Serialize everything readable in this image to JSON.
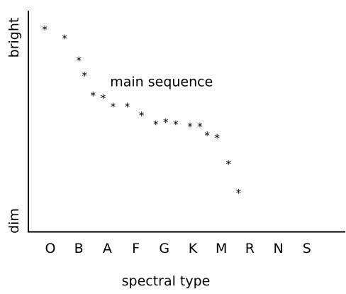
{
  "chart_data": {
    "type": "scatter",
    "title": "",
    "xlabel": "spectral type",
    "ylabel": "",
    "y_axis_end_labels": {
      "low": "dim",
      "high": "bright"
    },
    "categories": [
      "O",
      "B",
      "A",
      "F",
      "G",
      "K",
      "M",
      "R",
      "N",
      "S"
    ],
    "x_is_category_index": true,
    "xlim": [
      -0.6,
      10.4
    ],
    "ylim": [
      0,
      100
    ],
    "marker": "*",
    "annotations": [
      {
        "text": "main sequence",
        "x": 3.9,
        "y": 68
      }
    ],
    "grid": false,
    "legend": "none",
    "points": [
      {
        "x": -0.2,
        "y": 92
      },
      {
        "x": 0.5,
        "y": 88
      },
      {
        "x": 1.0,
        "y": 78
      },
      {
        "x": 1.2,
        "y": 71
      },
      {
        "x": 1.5,
        "y": 62
      },
      {
        "x": 1.85,
        "y": 61
      },
      {
        "x": 2.2,
        "y": 57
      },
      {
        "x": 2.7,
        "y": 57
      },
      {
        "x": 3.2,
        "y": 53
      },
      {
        "x": 3.7,
        "y": 49
      },
      {
        "x": 4.05,
        "y": 50
      },
      {
        "x": 4.4,
        "y": 49
      },
      {
        "x": 4.9,
        "y": 48
      },
      {
        "x": 5.25,
        "y": 48
      },
      {
        "x": 5.5,
        "y": 44
      },
      {
        "x": 5.85,
        "y": 43
      },
      {
        "x": 6.25,
        "y": 31
      },
      {
        "x": 6.6,
        "y": 18
      }
    ]
  }
}
